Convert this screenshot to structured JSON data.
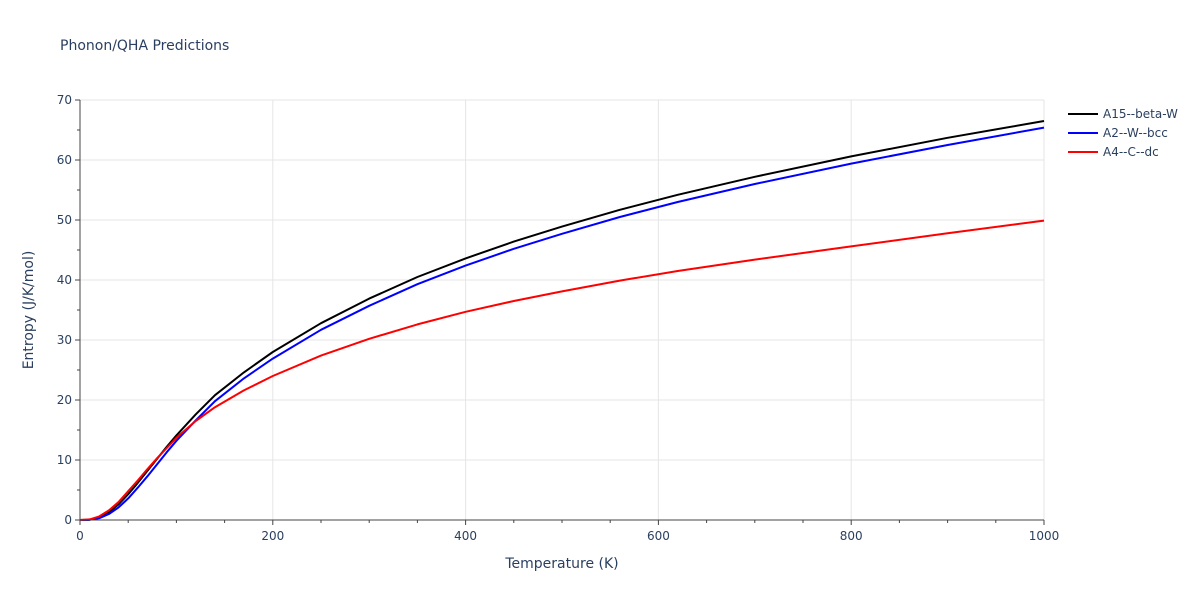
{
  "chart_data": {
    "type": "line",
    "title": "Phonon/QHA Predictions",
    "xlabel": "Temperature (K)",
    "ylabel": "Entropy (J/K/mol)",
    "xlim": [
      0,
      1000
    ],
    "ylim": [
      0,
      70
    ],
    "xticks": [
      0,
      200,
      400,
      600,
      800,
      1000
    ],
    "yticks": [
      0,
      10,
      20,
      30,
      40,
      50,
      60,
      70
    ],
    "grid": true,
    "legend_position": "top-right",
    "series": [
      {
        "name": "A15--beta-W",
        "color": "#000000",
        "x": [
          0,
          10,
          20,
          30,
          40,
          50,
          60,
          70,
          80,
          90,
          100,
          120,
          140,
          170,
          200,
          250,
          300,
          350,
          400,
          450,
          500,
          560,
          620,
          700,
          800,
          900,
          1000
        ],
        "y": [
          0,
          0.05,
          0.4,
          1.3,
          2.6,
          4.3,
          6.2,
          8.2,
          10.2,
          12.2,
          14.1,
          17.6,
          20.8,
          24.6,
          28.0,
          32.8,
          36.9,
          40.5,
          43.6,
          46.4,
          48.9,
          51.7,
          54.2,
          57.2,
          60.6,
          63.7,
          66.5
        ]
      },
      {
        "name": "A2--W--bcc",
        "color": "#0000ff",
        "x": [
          0,
          10,
          20,
          30,
          40,
          50,
          60,
          70,
          80,
          90,
          100,
          120,
          140,
          170,
          200,
          250,
          300,
          350,
          400,
          450,
          500,
          560,
          620,
          700,
          800,
          900,
          1000
        ],
        "y": [
          0,
          0.03,
          0.3,
          1.0,
          2.1,
          3.6,
          5.4,
          7.3,
          9.3,
          11.3,
          13.2,
          16.6,
          19.8,
          23.6,
          26.9,
          31.7,
          35.7,
          39.3,
          42.4,
          45.2,
          47.7,
          50.5,
          53.0,
          56.0,
          59.4,
          62.5,
          65.4
        ]
      },
      {
        "name": "A4--C--dc",
        "color": "#ff0000",
        "x": [
          0,
          10,
          20,
          30,
          40,
          50,
          60,
          70,
          80,
          90,
          100,
          120,
          140,
          170,
          200,
          250,
          300,
          350,
          400,
          450,
          500,
          560,
          620,
          700,
          800,
          900,
          1000
        ],
        "y": [
          0,
          0.1,
          0.6,
          1.6,
          3.0,
          4.8,
          6.6,
          8.5,
          10.3,
          12.0,
          13.7,
          16.5,
          18.8,
          21.6,
          24.0,
          27.4,
          30.2,
          32.6,
          34.7,
          36.5,
          38.1,
          39.9,
          41.5,
          43.4,
          45.6,
          47.8,
          49.9
        ]
      }
    ]
  }
}
